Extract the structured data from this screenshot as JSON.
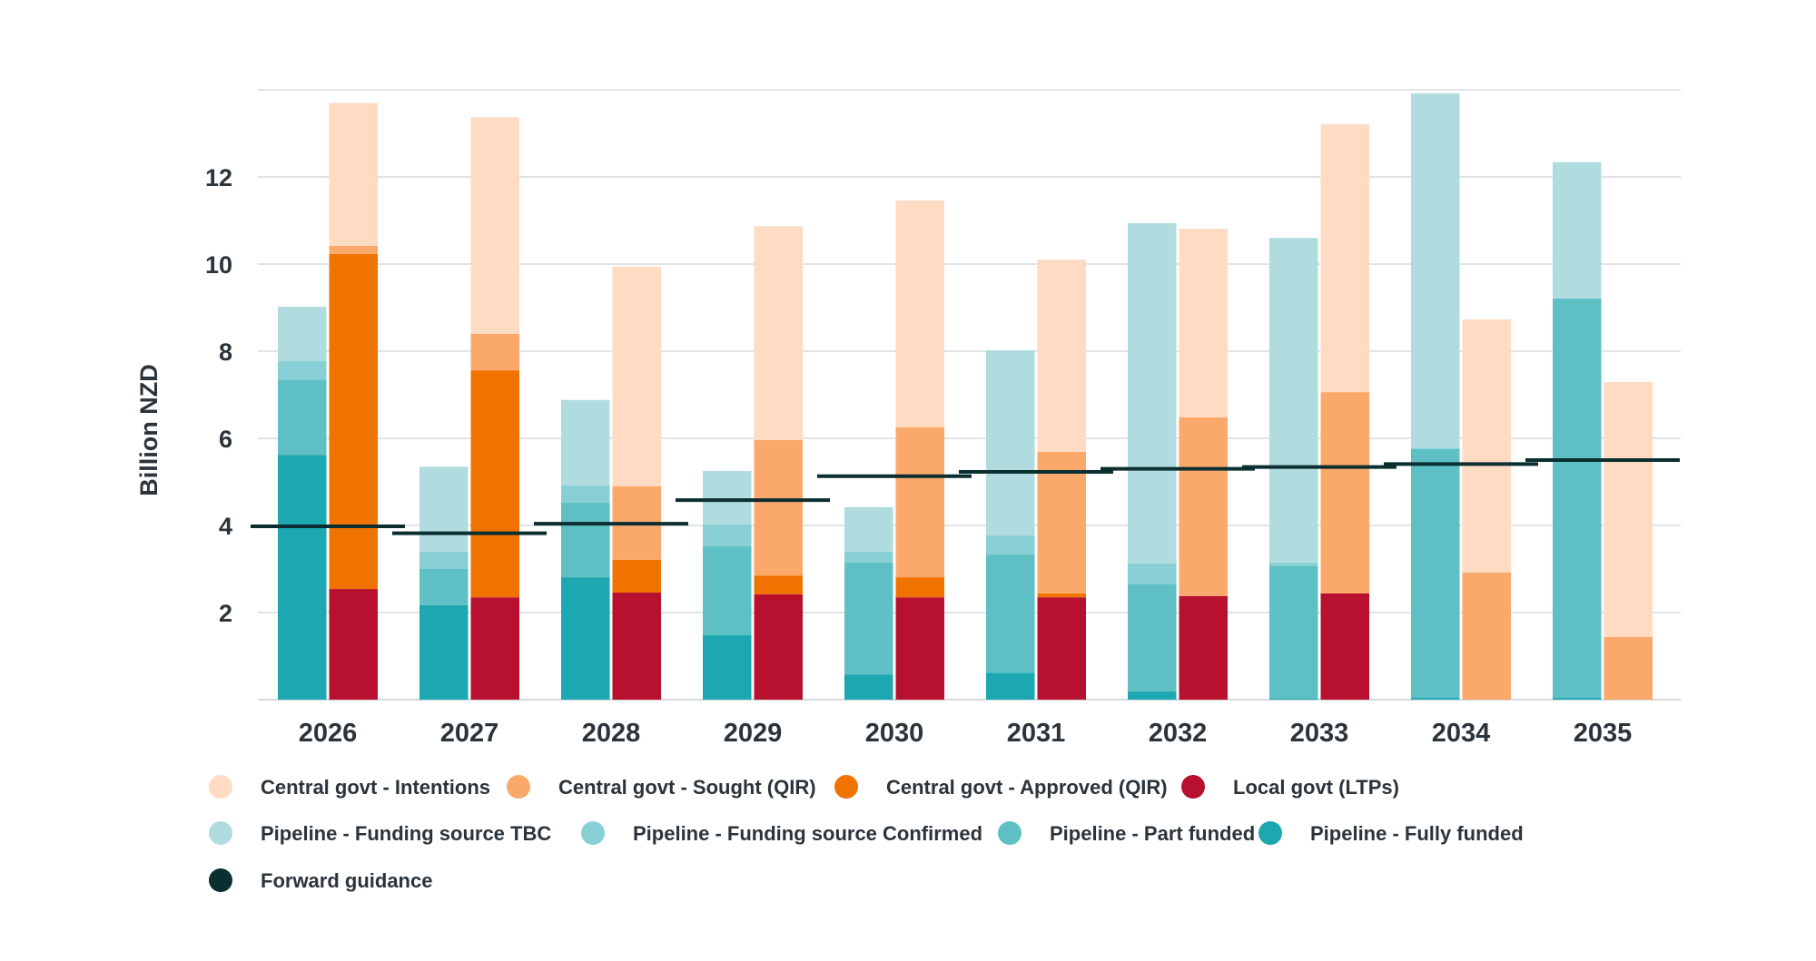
{
  "chart_data": {
    "type": "bar",
    "title": "",
    "xlabel": "",
    "ylabel": "Billion NZD",
    "ylim": [
      0,
      14
    ],
    "yticks": [
      2,
      4,
      6,
      8,
      10,
      12
    ],
    "grid": true,
    "legend_position": "bottom",
    "categories": [
      "2026",
      "2027",
      "2028",
      "2029",
      "2030",
      "2031",
      "2032",
      "2033",
      "2034",
      "2035"
    ],
    "stacks": [
      {
        "name": "Pipeline",
        "position": "left",
        "series": [
          {
            "name": "Pipeline - Fully funded",
            "color": "#1ca7b1",
            "values": [
              5.62,
              2.17,
              2.81,
              1.48,
              0.58,
              0.62,
              0.19,
              0.02,
              0.04,
              0.04
            ]
          },
          {
            "name": "Pipeline - Part funded",
            "color": "#5ebfc4",
            "values": [
              1.73,
              0.83,
              1.71,
              2.04,
              2.57,
              2.71,
              2.47,
              3.05,
              5.71,
              9.17
            ]
          },
          {
            "name": "Pipeline - Funding source Confirmed",
            "color": "#88d0d5",
            "values": [
              0.42,
              0.4,
              0.4,
              0.5,
              0.25,
              0.44,
              0.47,
              0.08,
              0.02,
              0.0
            ]
          },
          {
            "name": "Pipeline - Funding source TBC",
            "color": "#b1dcdf",
            "values": [
              1.25,
              1.95,
              1.96,
              1.23,
              1.02,
              4.25,
              7.81,
              7.45,
              8.15,
              3.13
            ]
          }
        ]
      },
      {
        "name": "Central and local govt",
        "position": "right",
        "series": [
          {
            "name": "Local govt (LTPs)",
            "color": "#b8112f",
            "values": [
              2.54,
              2.35,
              2.46,
              2.42,
              2.35,
              2.35,
              2.38,
              2.44,
              0.0,
              0.0
            ]
          },
          {
            "name": "Central govt - Approved (QIR)",
            "color": "#f07300",
            "values": [
              7.69,
              5.21,
              0.75,
              0.43,
              0.46,
              0.09,
              0.0,
              0.0,
              0.0,
              0.0
            ]
          },
          {
            "name": "Central govt - Sought (QIR)",
            "color": "#fba96b",
            "values": [
              0.19,
              0.84,
              1.69,
              3.11,
              3.44,
              3.25,
              4.1,
              4.62,
              2.92,
              1.44
            ]
          },
          {
            "name": "Central govt - Intentions",
            "color": "#fedbc2",
            "values": [
              3.28,
              4.97,
              5.04,
              4.91,
              5.21,
              4.41,
              4.33,
              6.15,
              5.81,
              5.85
            ]
          }
        ]
      }
    ],
    "forward_guidance": {
      "name": "Forward guidance",
      "color": "#0b2e31",
      "values": [
        3.98,
        3.82,
        4.04,
        4.58,
        5.13,
        5.23,
        5.3,
        5.34,
        5.41,
        5.5
      ]
    },
    "legend": [
      [
        {
          "label": "Central govt - Intentions",
          "color": "#fedbc2"
        },
        {
          "label": "Central govt - Sought (QIR)",
          "color": "#fba96b"
        },
        {
          "label": "Central govt - Approved (QIR)",
          "color": "#f07300"
        },
        {
          "label": "Local govt (LTPs)",
          "color": "#b8112f"
        }
      ],
      [
        {
          "label": "Pipeline - Funding source TBC",
          "color": "#b1dcdf"
        },
        {
          "label": "Pipeline - Funding source Confirmed",
          "color": "#88d0d5"
        },
        {
          "label": "Pipeline - Part funded",
          "color": "#5ebfc4"
        },
        {
          "label": "Pipeline - Fully funded",
          "color": "#1ca7b1"
        }
      ],
      [
        {
          "label": "Forward guidance",
          "color": "#0b2e31"
        }
      ]
    ]
  }
}
